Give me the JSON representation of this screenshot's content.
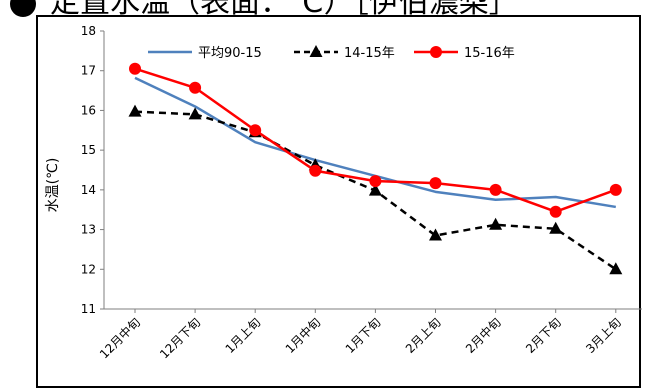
{
  "page_title": "定置水温（表面：℃）［伊伯濃梨］",
  "chart_data": {
    "type": "line",
    "title": "",
    "xlabel": "",
    "ylabel": "水温(℃)",
    "ylim": [
      11,
      18
    ],
    "yticks": [
      11,
      12,
      13,
      14,
      15,
      16,
      17,
      18
    ],
    "categories": [
      "12月中旬",
      "12月下旬",
      "1月上旬",
      "1月中旬",
      "1月下旬",
      "2月上旬",
      "2月中旬",
      "2月下旬",
      "3月上旬"
    ],
    "legend_position": "top",
    "grid": false,
    "series": [
      {
        "name": "平均90-15",
        "color": "#4f81bd",
        "dash": "solid",
        "marker": "none",
        "values": [
          16.82,
          16.1,
          15.2,
          14.75,
          14.35,
          13.95,
          13.75,
          13.82,
          13.57
        ]
      },
      {
        "name": "14-15年",
        "color": "#000000",
        "dash": "dashed",
        "marker": "triangle",
        "values": [
          15.97,
          15.9,
          15.45,
          14.62,
          13.98,
          12.85,
          13.12,
          13.02,
          12.0
        ]
      },
      {
        "name": "15-16年",
        "color": "#ff0000",
        "dash": "solid",
        "marker": "circle",
        "values": [
          17.05,
          16.57,
          15.5,
          14.48,
          14.22,
          14.17,
          14.0,
          13.45,
          14.0
        ]
      }
    ]
  }
}
